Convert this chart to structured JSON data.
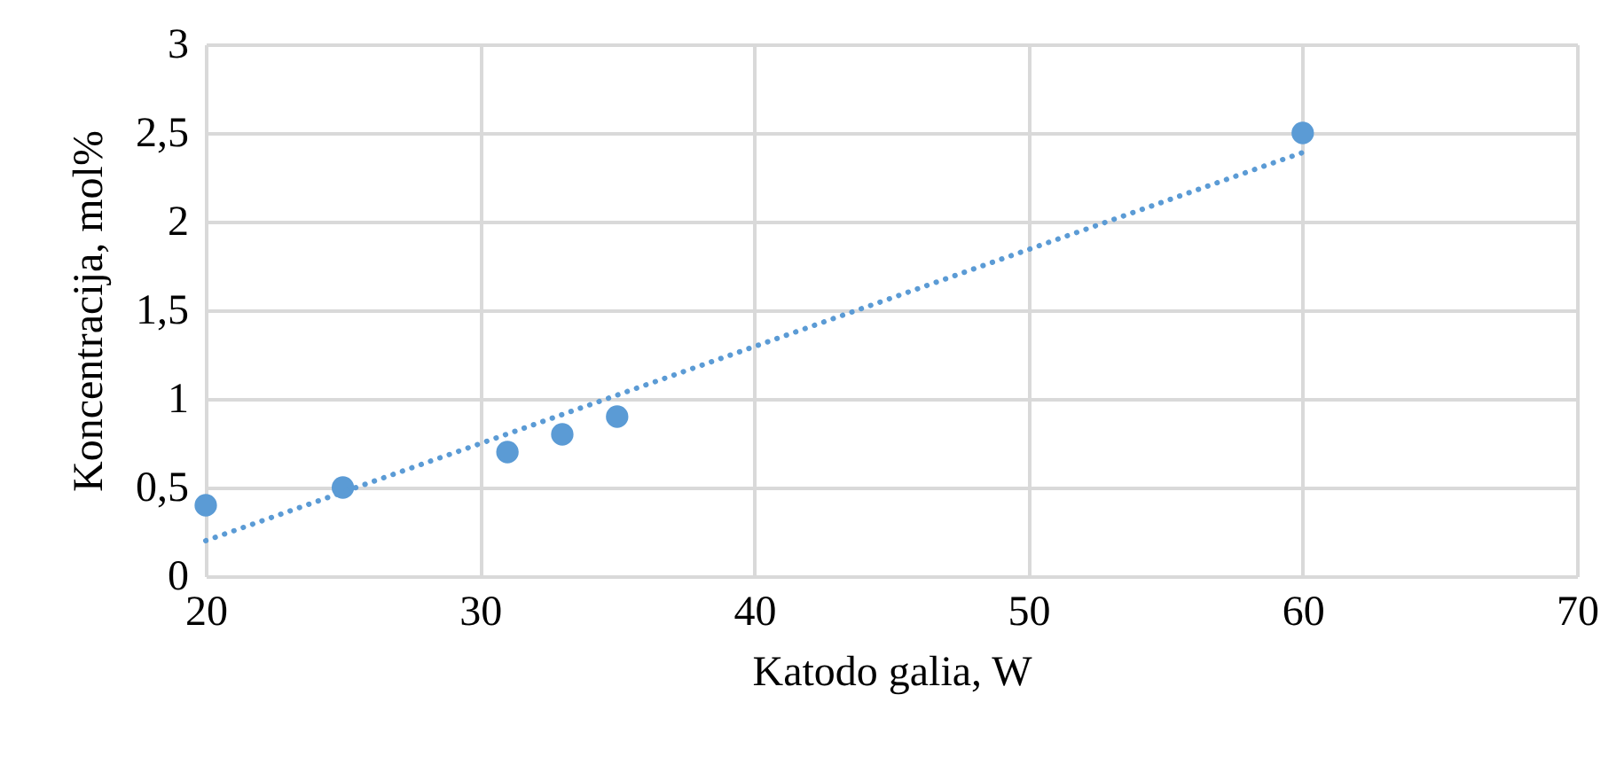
{
  "chart_data": {
    "type": "scatter",
    "xlabel": "Katodo galia, W",
    "ylabel": "Koncentracija, mol%",
    "x": [
      20,
      25,
      31,
      33,
      35,
      60
    ],
    "series": [
      {
        "color": "#5b9bd5",
        "marker": "circle",
        "values": [
          0.4,
          0.5,
          0.7,
          0.8,
          0.9,
          2.5
        ]
      },
      {
        "type": "line",
        "color": "#5b9bd5",
        "line_style": "dotted",
        "x": [
          20,
          60
        ],
        "values": [
          0.2,
          2.39
        ]
      }
    ],
    "xlim": [
      20,
      70
    ],
    "xticks": [
      20,
      30,
      40,
      50,
      60,
      70
    ],
    "ylim": [
      0,
      3
    ],
    "yticks": [
      0,
      {
        "value": 0.5,
        "label": "0,5"
      },
      1,
      {
        "value": 1.5,
        "label": "1,5"
      },
      2,
      {
        "value": 2.5,
        "label": "2,5"
      },
      3
    ],
    "grid": true
  }
}
